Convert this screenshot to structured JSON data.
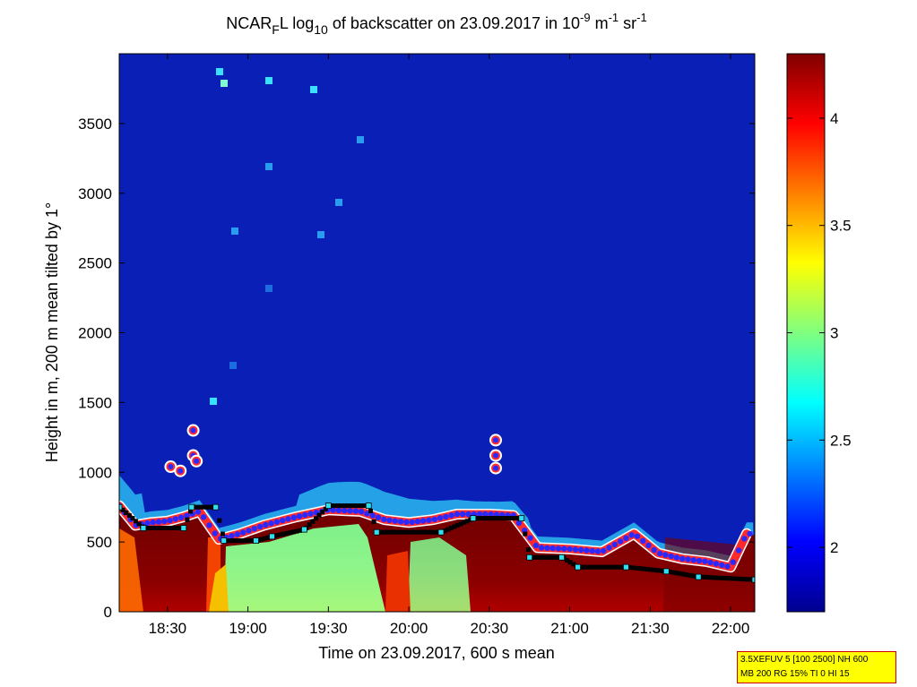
{
  "chart_data": {
    "type": "heatmap",
    "title": {
      "base": "NCAR",
      "sub_f": "F",
      "l": "L log",
      "sub_10": "10",
      "rest": " of backscatter on 23.09.2017 in 10",
      "exp_9": "-9",
      "m": " m",
      "exp_m": "-1",
      "sr": " sr",
      "exp_sr": "-1"
    },
    "xlabel": "Time on 23.09.2017, 600 s mean",
    "ylabel": "Height in m, 200 m mean tilted by 1°",
    "x_ticks": [
      "18:30",
      "19:00",
      "19:30",
      "20:00",
      "20:30",
      "21:00",
      "21:30",
      "22:00"
    ],
    "x_tick_hours": [
      18.5,
      19.0,
      19.5,
      20.0,
      20.5,
      21.0,
      21.5,
      22.0
    ],
    "xlim_hours": [
      18.2,
      22.15
    ],
    "y_ticks": [
      0,
      500,
      1000,
      1500,
      2000,
      2500,
      3000,
      3500
    ],
    "ylim": [
      0,
      4000
    ],
    "colorbar": {
      "range": [
        1.7,
        4.3
      ],
      "ticks": [
        2,
        2.5,
        3,
        3.5,
        4
      ],
      "tick_labels": [
        "2",
        "2.5",
        "3",
        "3.5",
        "4"
      ],
      "colormap": "jet"
    },
    "grid": false,
    "boundary_layer_top_m": [
      {
        "t": 18.2,
        "h": 760
      },
      {
        "t": 18.3,
        "h": 620
      },
      {
        "t": 18.4,
        "h": 640
      },
      {
        "t": 18.5,
        "h": 650
      },
      {
        "t": 18.6,
        "h": 680
      },
      {
        "t": 18.7,
        "h": 720
      },
      {
        "t": 18.82,
        "h": 520
      },
      {
        "t": 18.95,
        "h": 560
      },
      {
        "t": 19.1,
        "h": 620
      },
      {
        "t": 19.3,
        "h": 680
      },
      {
        "t": 19.5,
        "h": 730
      },
      {
        "t": 19.7,
        "h": 720
      },
      {
        "t": 19.85,
        "h": 660
      },
      {
        "t": 20.0,
        "h": 640
      },
      {
        "t": 20.15,
        "h": 660
      },
      {
        "t": 20.3,
        "h": 700
      },
      {
        "t": 20.5,
        "h": 700
      },
      {
        "t": 20.65,
        "h": 690
      },
      {
        "t": 20.8,
        "h": 460
      },
      {
        "t": 21.0,
        "h": 450
      },
      {
        "t": 21.2,
        "h": 430
      },
      {
        "t": 21.4,
        "h": 560
      },
      {
        "t": 21.55,
        "h": 420
      },
      {
        "t": 21.7,
        "h": 380
      },
      {
        "t": 21.85,
        "h": 360
      },
      {
        "t": 22.0,
        "h": 320
      },
      {
        "t": 22.1,
        "h": 560
      }
    ],
    "mixing_layer_height_m": [
      {
        "t": 18.2,
        "h": 750
      },
      {
        "t": 18.35,
        "h": 600
      },
      {
        "t": 18.6,
        "h": 600
      },
      {
        "t": 18.65,
        "h": 750
      },
      {
        "t": 18.8,
        "h": 750
      },
      {
        "t": 18.85,
        "h": 510
      },
      {
        "t": 19.05,
        "h": 510
      },
      {
        "t": 19.15,
        "h": 540
      },
      {
        "t": 19.35,
        "h": 590
      },
      {
        "t": 19.5,
        "h": 760
      },
      {
        "t": 19.75,
        "h": 760
      },
      {
        "t": 19.8,
        "h": 570
      },
      {
        "t": 20.2,
        "h": 570
      },
      {
        "t": 20.4,
        "h": 670
      },
      {
        "t": 20.7,
        "h": 670
      },
      {
        "t": 20.75,
        "h": 390
      },
      {
        "t": 20.95,
        "h": 390
      },
      {
        "t": 21.05,
        "h": 320
      },
      {
        "t": 21.35,
        "h": 320
      },
      {
        "t": 21.6,
        "h": 290
      },
      {
        "t": 21.8,
        "h": 250
      },
      {
        "t": 22.15,
        "h": 230
      }
    ],
    "cloud_points_m": [
      {
        "t": 18.66,
        "h": 1300
      },
      {
        "t": 18.66,
        "h": 1120
      },
      {
        "t": 18.68,
        "h": 1080
      },
      {
        "t": 18.52,
        "h": 1040
      },
      {
        "t": 18.58,
        "h": 1010
      },
      {
        "t": 20.54,
        "h": 1230
      },
      {
        "t": 20.54,
        "h": 1120
      },
      {
        "t": 20.54,
        "h": 1030
      }
    ]
  },
  "info_box": {
    "line1": "3.5XEFUV 5 [100 2500] NH 600",
    "line2": "MB 200 RG 15% TI 0 HI 15"
  }
}
